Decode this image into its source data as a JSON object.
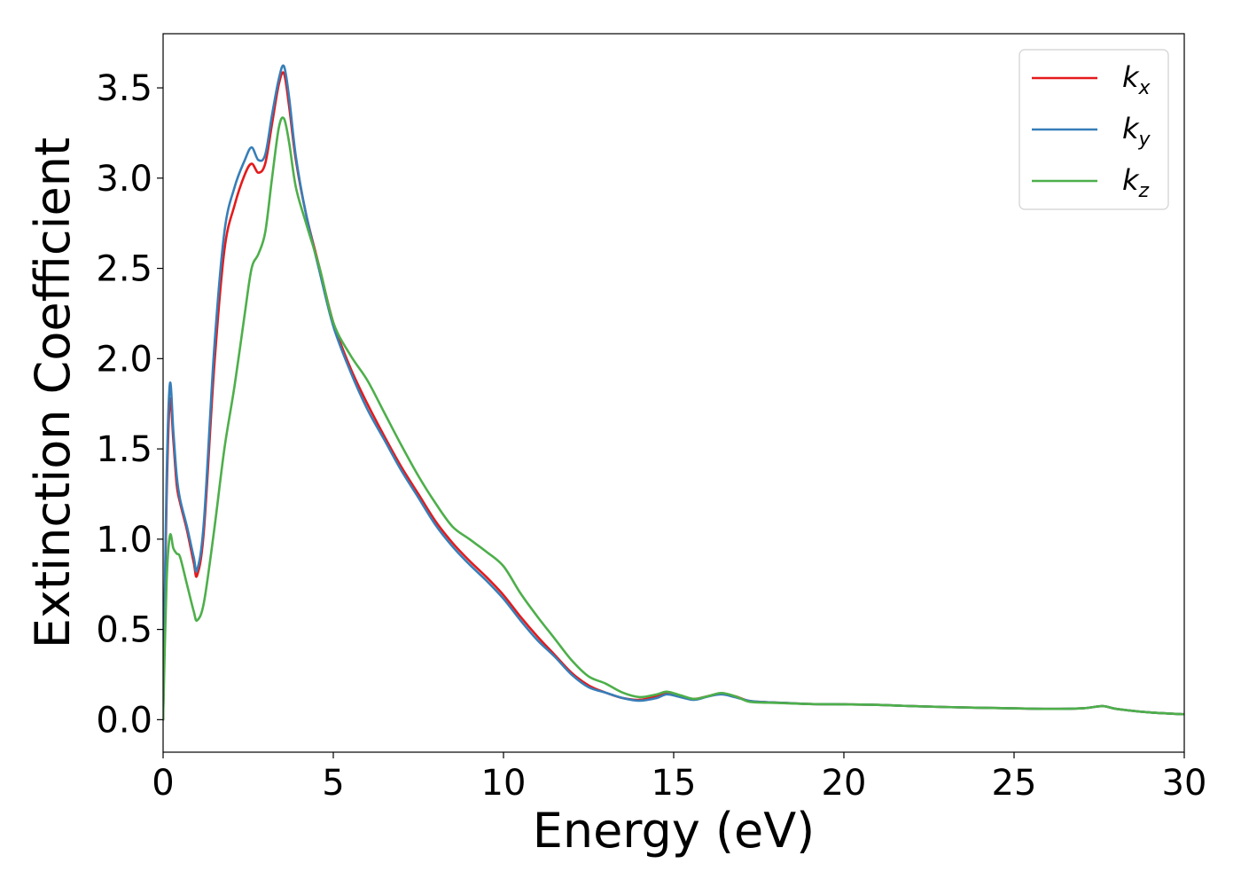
{
  "chart_data": {
    "type": "line",
    "xlabel": "Energy (eV)",
    "ylabel": "Extinction Coefficient",
    "xlim": [
      0,
      30
    ],
    "ylim": [
      -0.18,
      3.8
    ],
    "xticks": [
      0,
      5,
      10,
      15,
      20,
      25,
      30
    ],
    "xtick_labels": [
      "0",
      "5",
      "10",
      "15",
      "20",
      "25",
      "30"
    ],
    "yticks": [
      0.0,
      0.5,
      1.0,
      1.5,
      2.0,
      2.5,
      3.0,
      3.5
    ],
    "ytick_labels": [
      "0.0",
      "0.5",
      "1.0",
      "1.5",
      "2.0",
      "2.5",
      "3.0",
      "3.5"
    ],
    "grid": false,
    "legend_position": "top-right",
    "series": [
      {
        "name": "k",
        "subscript": "x",
        "color": "#e41a1c",
        "x": [
          0,
          0.1,
          0.2,
          0.3,
          0.4,
          0.5,
          0.7,
          0.9,
          1.0,
          1.2,
          1.5,
          1.8,
          2.1,
          2.4,
          2.6,
          2.8,
          3.0,
          3.2,
          3.4,
          3.55,
          3.7,
          3.9,
          4.2,
          4.6,
          5.0,
          5.5,
          6.0,
          6.5,
          7.0,
          7.5,
          8.0,
          8.5,
          9.0,
          9.5,
          10.0,
          10.5,
          11.0,
          11.5,
          12.0,
          12.5,
          13.0,
          13.5,
          14.0,
          14.5,
          14.8,
          15.2,
          15.6,
          16.0,
          16.4,
          16.8,
          17.2,
          17.6,
          18.0,
          19.0,
          20.0,
          21.0,
          22.0,
          23.0,
          24.0,
          25.0,
          26.0,
          27.0,
          27.6,
          28.0,
          29.0,
          30.0
        ],
        "values": [
          0.0,
          1.2,
          1.77,
          1.55,
          1.3,
          1.2,
          1.05,
          0.87,
          0.8,
          1.05,
          1.95,
          2.6,
          2.85,
          3.02,
          3.08,
          3.03,
          3.08,
          3.3,
          3.52,
          3.58,
          3.4,
          3.1,
          2.8,
          2.5,
          2.2,
          1.95,
          1.75,
          1.57,
          1.4,
          1.25,
          1.1,
          0.98,
          0.88,
          0.79,
          0.69,
          0.57,
          0.46,
          0.36,
          0.26,
          0.19,
          0.15,
          0.12,
          0.11,
          0.13,
          0.145,
          0.13,
          0.115,
          0.13,
          0.145,
          0.13,
          0.105,
          0.098,
          0.095,
          0.087,
          0.085,
          0.082,
          0.075,
          0.07,
          0.066,
          0.063,
          0.06,
          0.063,
          0.075,
          0.06,
          0.04,
          0.03
        ]
      },
      {
        "name": "k",
        "subscript": "y",
        "color": "#377eb8",
        "x": [
          0,
          0.1,
          0.2,
          0.3,
          0.4,
          0.5,
          0.7,
          0.9,
          1.0,
          1.2,
          1.5,
          1.8,
          2.1,
          2.4,
          2.6,
          2.8,
          3.0,
          3.2,
          3.4,
          3.55,
          3.7,
          3.9,
          4.2,
          4.6,
          5.0,
          5.5,
          6.0,
          6.5,
          7.0,
          7.5,
          8.0,
          8.5,
          9.0,
          9.5,
          10.0,
          10.5,
          11.0,
          11.5,
          12.0,
          12.5,
          13.0,
          13.5,
          14.0,
          14.5,
          14.8,
          15.2,
          15.6,
          16.0,
          16.4,
          16.8,
          17.2,
          17.6,
          18.0,
          19.0,
          20.0,
          21.0,
          22.0,
          23.0,
          24.0,
          25.0,
          26.0,
          27.0,
          27.6,
          28.0,
          29.0,
          30.0
        ],
        "values": [
          0.0,
          1.3,
          1.86,
          1.6,
          1.35,
          1.22,
          1.07,
          0.9,
          0.83,
          1.1,
          2.05,
          2.7,
          2.95,
          3.1,
          3.17,
          3.1,
          3.13,
          3.35,
          3.55,
          3.62,
          3.45,
          3.12,
          2.8,
          2.48,
          2.18,
          1.93,
          1.72,
          1.55,
          1.38,
          1.23,
          1.08,
          0.96,
          0.86,
          0.77,
          0.67,
          0.55,
          0.44,
          0.35,
          0.25,
          0.18,
          0.15,
          0.12,
          0.105,
          0.12,
          0.14,
          0.125,
          0.11,
          0.128,
          0.14,
          0.125,
          0.105,
          0.098,
          0.095,
          0.087,
          0.085,
          0.082,
          0.075,
          0.07,
          0.066,
          0.063,
          0.06,
          0.063,
          0.075,
          0.06,
          0.04,
          0.03
        ]
      },
      {
        "name": "k",
        "subscript": "z",
        "color": "#4daf4a",
        "x": [
          0,
          0.1,
          0.2,
          0.3,
          0.4,
          0.5,
          0.7,
          0.9,
          1.0,
          1.2,
          1.5,
          1.8,
          2.1,
          2.4,
          2.6,
          2.8,
          3.0,
          3.2,
          3.4,
          3.55,
          3.7,
          3.9,
          4.2,
          4.6,
          5.0,
          5.5,
          6.0,
          6.5,
          7.0,
          7.5,
          8.0,
          8.5,
          9.0,
          9.5,
          10.0,
          10.5,
          11.0,
          11.5,
          12.0,
          12.5,
          13.0,
          13.5,
          14.0,
          14.5,
          14.8,
          15.2,
          15.6,
          16.0,
          16.4,
          16.8,
          17.2,
          17.6,
          18.0,
          19.0,
          20.0,
          21.0,
          22.0,
          23.0,
          24.0,
          25.0,
          26.0,
          27.0,
          27.6,
          28.0,
          29.0,
          30.0
        ],
        "values": [
          0.0,
          0.75,
          1.02,
          0.95,
          0.92,
          0.9,
          0.75,
          0.6,
          0.55,
          0.65,
          1.05,
          1.5,
          1.85,
          2.25,
          2.5,
          2.58,
          2.7,
          3.0,
          3.28,
          3.33,
          3.2,
          2.95,
          2.75,
          2.5,
          2.2,
          2.02,
          1.88,
          1.7,
          1.52,
          1.35,
          1.2,
          1.07,
          1.0,
          0.93,
          0.85,
          0.7,
          0.57,
          0.45,
          0.33,
          0.24,
          0.2,
          0.15,
          0.125,
          0.14,
          0.155,
          0.135,
          0.115,
          0.13,
          0.148,
          0.13,
          0.1,
          0.095,
          0.093,
          0.087,
          0.085,
          0.082,
          0.075,
          0.07,
          0.066,
          0.063,
          0.06,
          0.063,
          0.075,
          0.06,
          0.04,
          0.03
        ]
      }
    ]
  }
}
